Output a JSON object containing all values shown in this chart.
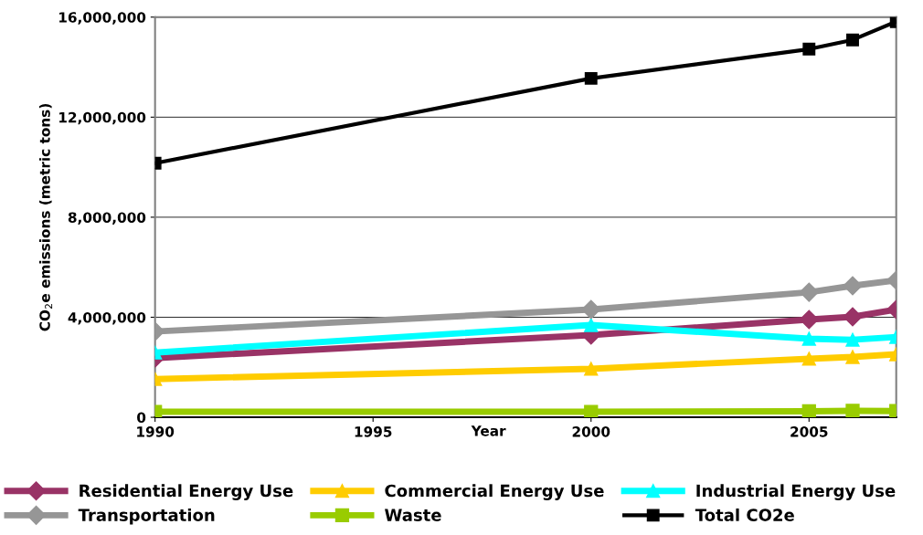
{
  "chart_data": {
    "type": "line",
    "xlabel": "Year",
    "ylabel": "CO$_{2}$e emissions (metric tons)",
    "x": [
      1990,
      2000,
      2005,
      2006,
      2007
    ],
    "xlim": [
      1990,
      2007
    ],
    "xticks": [
      1990,
      1995,
      2000,
      2005
    ],
    "ylim": [
      0,
      16000000
    ],
    "yticks": [
      {
        "value": 0,
        "label": "0"
      },
      {
        "value": 4000000,
        "label": "4,000,000"
      },
      {
        "value": 8000000,
        "label": "8,000,000"
      },
      {
        "value": 12000000,
        "label": "12,000,000"
      },
      {
        "value": 16000000,
        "label": "16,000,000"
      }
    ],
    "grid": "y",
    "legend": "bottom",
    "line_style": "solid",
    "series": [
      {
        "name": "Residential Energy Use",
        "color": "#993366",
        "marker": "diamond",
        "values": [
          2370000,
          3290000,
          3910000,
          4020000,
          4310000
        ]
      },
      {
        "name": "Commercial Energy Use",
        "color": "#ffcc00",
        "marker": "triangle",
        "values": [
          1530000,
          1940000,
          2340000,
          2410000,
          2520000
        ]
      },
      {
        "name": "Industrial Energy Use",
        "color": "#00ffff",
        "marker": "triangle",
        "values": [
          2590000,
          3690000,
          3140000,
          3100000,
          3210000
        ]
      },
      {
        "name": "Transportation",
        "color": "#969696",
        "marker": "diamond",
        "values": [
          3430000,
          4310000,
          5000000,
          5260000,
          5480000
        ]
      },
      {
        "name": "Waste",
        "color": "#99cc00",
        "marker": "square",
        "values": [
          220000,
          220000,
          240000,
          260000,
          250000
        ]
      },
      {
        "name": "Total CO2e",
        "color": "#000000",
        "marker": "square",
        "values": [
          10160000,
          13550000,
          14720000,
          15090000,
          15820000
        ]
      }
    ]
  }
}
